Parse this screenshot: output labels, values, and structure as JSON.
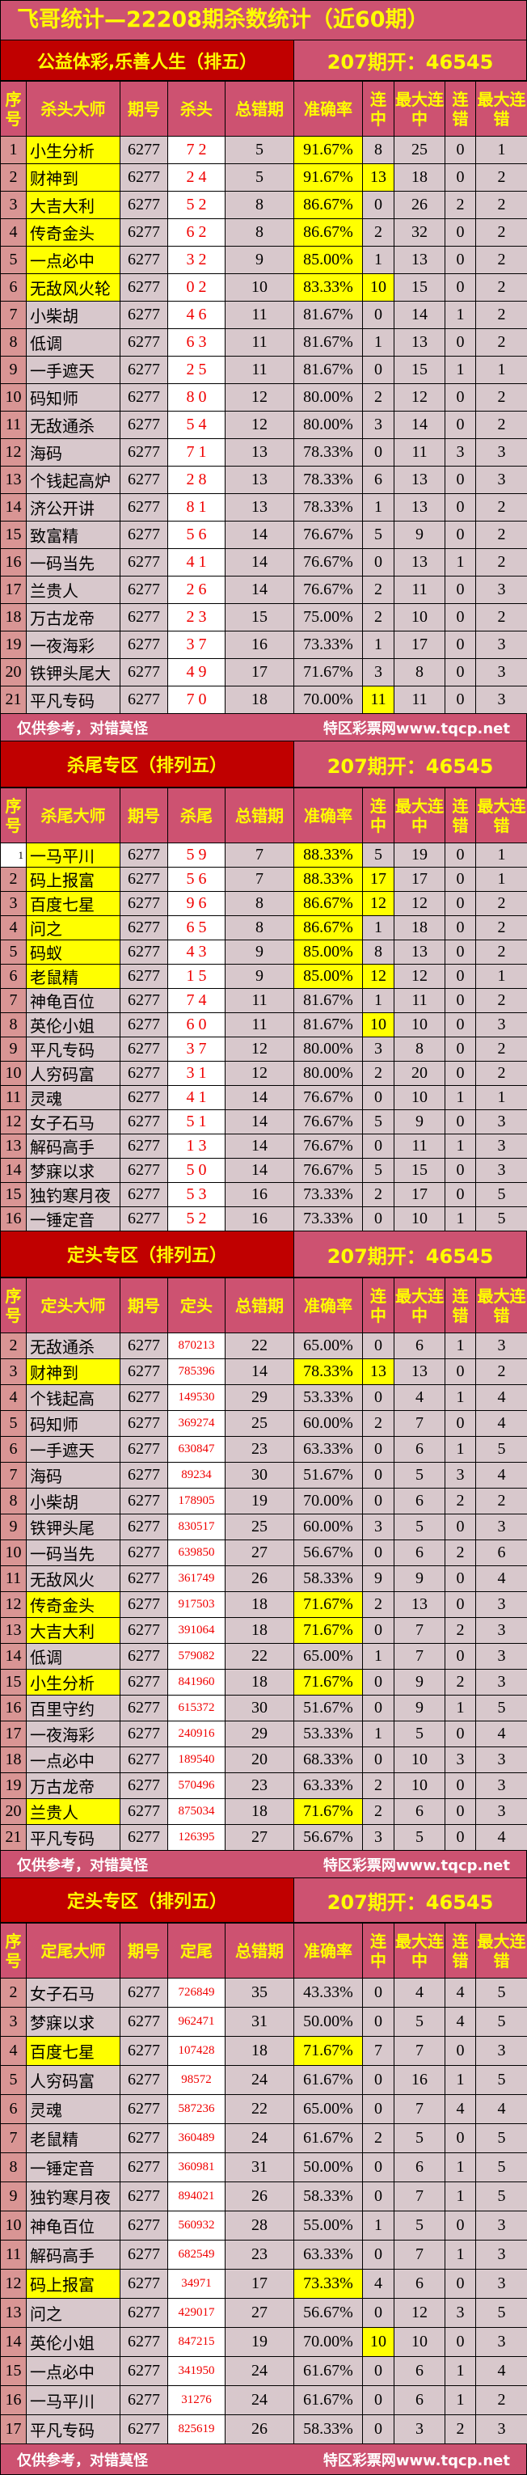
{
  "title": "飞哥统计—22208期杀数统计（近60期）",
  "colors": {
    "header_bg": "#cd5271",
    "section_left_bg": "#c00000",
    "header_text": "#ffff00",
    "highlight": "#ffff00",
    "cell_bg": "#d8c8cc",
    "seq_bg": "#d99594",
    "number_red": "#f00000"
  },
  "sections": [
    {
      "left": "公益体彩,乐善人生（排五）",
      "right": "207期开：46545",
      "headers": [
        "序号",
        "杀头大师",
        "期号",
        "杀头",
        "总错期",
        "准确率",
        "连中",
        "最大连中",
        "连错",
        "最大连错"
      ],
      "footer": {
        "left": "仅供参考，对错莫怪",
        "right": "特区彩票网www.tqcp.net"
      },
      "rows": [
        [
          "1",
          "小生分析",
          "6277",
          "7 2",
          "5",
          "91.67%",
          "8",
          "25",
          "0",
          "1",
          "name,rate"
        ],
        [
          "2",
          "财神到",
          "6277",
          "2 4",
          "5",
          "91.67%",
          "13",
          "18",
          "0",
          "2",
          "name,rate,streak"
        ],
        [
          "3",
          "大吉大利",
          "6277",
          "5 2",
          "8",
          "86.67%",
          "0",
          "26",
          "2",
          "2",
          "name,rate"
        ],
        [
          "4",
          "传奇金头",
          "6277",
          "6 2",
          "8",
          "86.67%",
          "2",
          "32",
          "0",
          "2",
          "name,rate"
        ],
        [
          "5",
          "一点必中",
          "6277",
          "3 2",
          "9",
          "85.00%",
          "1",
          "13",
          "0",
          "2",
          "name,rate"
        ],
        [
          "6",
          "无敌风火轮",
          "6277",
          "0 2",
          "10",
          "83.33%",
          "10",
          "15",
          "0",
          "2",
          "name,rate,streak"
        ],
        [
          "7",
          "小柴胡",
          "6277",
          "4 6",
          "11",
          "81.67%",
          "0",
          "14",
          "1",
          "2",
          ""
        ],
        [
          "8",
          "低调",
          "6277",
          "6 3",
          "11",
          "81.67%",
          "1",
          "13",
          "0",
          "2",
          ""
        ],
        [
          "9",
          "一手遮天",
          "6277",
          "2 5",
          "11",
          "81.67%",
          "0",
          "15",
          "1",
          "1",
          ""
        ],
        [
          "10",
          "码知师",
          "6277",
          "8 0",
          "12",
          "80.00%",
          "2",
          "12",
          "0",
          "2",
          ""
        ],
        [
          "11",
          "无敌通杀",
          "6277",
          "5 4",
          "12",
          "80.00%",
          "3",
          "14",
          "0",
          "2",
          ""
        ],
        [
          "12",
          "海码",
          "6277",
          "7 1",
          "13",
          "78.33%",
          "0",
          "11",
          "3",
          "3",
          ""
        ],
        [
          "13",
          "个钱起高炉",
          "6277",
          "2 8",
          "13",
          "78.33%",
          "6",
          "13",
          "0",
          "3",
          ""
        ],
        [
          "14",
          "济公开讲",
          "6277",
          "8 1",
          "13",
          "78.33%",
          "1",
          "13",
          "0",
          "2",
          ""
        ],
        [
          "15",
          "致富精",
          "6277",
          "5 6",
          "14",
          "76.67%",
          "5",
          "9",
          "0",
          "2",
          ""
        ],
        [
          "16",
          "一码当先",
          "6277",
          "4 1",
          "14",
          "76.67%",
          "0",
          "13",
          "1",
          "2",
          ""
        ],
        [
          "17",
          "兰贵人",
          "6277",
          "2 6",
          "14",
          "76.67%",
          "2",
          "11",
          "0",
          "3",
          ""
        ],
        [
          "18",
          "万古龙帝",
          "6277",
          "2 3",
          "15",
          "75.00%",
          "2",
          "10",
          "0",
          "2",
          ""
        ],
        [
          "19",
          "一夜海彩",
          "6277",
          "3 7",
          "16",
          "73.33%",
          "1",
          "17",
          "0",
          "3",
          ""
        ],
        [
          "20",
          "铁钾头尾大",
          "6277",
          "4 9",
          "17",
          "71.67%",
          "3",
          "8",
          "0",
          "3",
          ""
        ],
        [
          "21",
          "平凡专码",
          "6277",
          "7 0",
          "18",
          "70.00%",
          "11",
          "11",
          "0",
          "3",
          "streak"
        ]
      ]
    },
    {
      "left": "杀尾专区（排列五）",
      "right": "207期开：46545",
      "headers": [
        "序号",
        "杀尾大师",
        "期号",
        "杀尾",
        "总错期",
        "准确率",
        "连中",
        "最大连中",
        "连错",
        "最大连错"
      ],
      "rows": [
        [
          "1",
          "一马平川",
          "6277",
          "5 9",
          "7",
          "88.33%",
          "5",
          "19",
          "0",
          "1",
          "name,rate,seqwhite"
        ],
        [
          "2",
          "码上报富",
          "6277",
          "5 6",
          "7",
          "88.33%",
          "17",
          "17",
          "0",
          "1",
          "name,rate,streak"
        ],
        [
          "3",
          "百度七星",
          "6277",
          "9 6",
          "8",
          "86.67%",
          "12",
          "12",
          "0",
          "2",
          "name,rate,streak"
        ],
        [
          "4",
          "问之",
          "6277",
          "6 5",
          "8",
          "86.67%",
          "1",
          "18",
          "0",
          "2",
          "name,rate"
        ],
        [
          "5",
          "码蚁",
          "6277",
          "4 3",
          "9",
          "85.00%",
          "8",
          "13",
          "0",
          "2",
          "name,rate"
        ],
        [
          "6",
          "老鼠精",
          "6277",
          "1 5",
          "9",
          "85.00%",
          "12",
          "12",
          "0",
          "1",
          "name,rate,streak"
        ],
        [
          "7",
          "神龟百位",
          "6277",
          "7 4",
          "11",
          "81.67%",
          "1",
          "11",
          "0",
          "2",
          ""
        ],
        [
          "8",
          "英伦小姐",
          "6277",
          "6 0",
          "11",
          "81.67%",
          "10",
          "10",
          "0",
          "3",
          "streak"
        ],
        [
          "9",
          "平凡专码",
          "6277",
          "3 7",
          "12",
          "80.00%",
          "3",
          "8",
          "0",
          "2",
          ""
        ],
        [
          "10",
          "人穷码富",
          "6277",
          "3 1",
          "12",
          "80.00%",
          "2",
          "20",
          "0",
          "2",
          ""
        ],
        [
          "11",
          "灵魂",
          "6277",
          "4 1",
          "14",
          "76.67%",
          "0",
          "10",
          "1",
          "1",
          ""
        ],
        [
          "12",
          "女子石马",
          "6277",
          "5 1",
          "14",
          "76.67%",
          "5",
          "9",
          "0",
          "3",
          ""
        ],
        [
          "13",
          "解码高手",
          "6277",
          "1 3",
          "14",
          "76.67%",
          "0",
          "11",
          "1",
          "3",
          ""
        ],
        [
          "14",
          "梦寐以求",
          "6277",
          "5 0",
          "14",
          "76.67%",
          "5",
          "15",
          "0",
          "3",
          ""
        ],
        [
          "15",
          "独钓寒月夜",
          "6277",
          "5 3",
          "16",
          "73.33%",
          "2",
          "17",
          "0",
          "5",
          ""
        ],
        [
          "16",
          "一锤定音",
          "6277",
          "5 2",
          "16",
          "73.33%",
          "0",
          "10",
          "1",
          "5",
          ""
        ]
      ]
    },
    {
      "left": "定头专区（排列五）",
      "right": "207期开：46545",
      "headers": [
        "序号",
        "定头大师",
        "期号",
        "定头",
        "总错期",
        "准确率",
        "连中",
        "最大连中",
        "连错",
        "最大连错"
      ],
      "footer": {
        "left": "仅供参考，对错莫怪",
        "right": "特区彩票网www.tqcp.net"
      },
      "rows": [
        [
          "2",
          "无敌通杀",
          "6277",
          "870213",
          "22",
          "65.00%",
          "0",
          "6",
          "1",
          "3",
          ""
        ],
        [
          "3",
          "财神到",
          "6277",
          "785396",
          "14",
          "78.33%",
          "13",
          "13",
          "0",
          "2",
          "name,rate,streak"
        ],
        [
          "4",
          "个钱起高",
          "6277",
          "149530",
          "29",
          "53.33%",
          "0",
          "4",
          "1",
          "4",
          ""
        ],
        [
          "5",
          "码知师",
          "6277",
          "369274",
          "25",
          "60.00%",
          "2",
          "7",
          "0",
          "4",
          ""
        ],
        [
          "6",
          "一手遮天",
          "6277",
          "630847",
          "23",
          "63.33%",
          "0",
          "6",
          "1",
          "5",
          ""
        ],
        [
          "7",
          "海码",
          "6277",
          "89234",
          "30",
          "51.67%",
          "0",
          "5",
          "3",
          "4",
          ""
        ],
        [
          "8",
          "小柴胡",
          "6277",
          "178905",
          "19",
          "70.00%",
          "0",
          "6",
          "2",
          "2",
          ""
        ],
        [
          "9",
          "铁钾头尾",
          "6277",
          "830517",
          "25",
          "60.00%",
          "3",
          "5",
          "0",
          "3",
          ""
        ],
        [
          "10",
          "一码当先",
          "6277",
          "639850",
          "27",
          "56.67%",
          "0",
          "6",
          "2",
          "6",
          ""
        ],
        [
          "11",
          "无敌风火",
          "6277",
          "361749",
          "26",
          "58.33%",
          "9",
          "9",
          "0",
          "4",
          ""
        ],
        [
          "12",
          "传奇金头",
          "6277",
          "917503",
          "18",
          "71.67%",
          "2",
          "13",
          "0",
          "3",
          "name,rate"
        ],
        [
          "13",
          "大吉大利",
          "6277",
          "391064",
          "18",
          "71.67%",
          "0",
          "7",
          "2",
          "3",
          "name,rate"
        ],
        [
          "14",
          "低调",
          "6277",
          "579082",
          "22",
          "65.00%",
          "1",
          "7",
          "0",
          "3",
          ""
        ],
        [
          "15",
          "小生分析",
          "6277",
          "841960",
          "18",
          "71.67%",
          "0",
          "9",
          "2",
          "3",
          "name,rate"
        ],
        [
          "16",
          "百里守约",
          "6277",
          "615372",
          "30",
          "51.67%",
          "0",
          "9",
          "1",
          "5",
          ""
        ],
        [
          "17",
          "一夜海彩",
          "6277",
          "240916",
          "29",
          "53.33%",
          "1",
          "5",
          "0",
          "4",
          ""
        ],
        [
          "18",
          "一点必中",
          "6277",
          "189540",
          "20",
          "68.33%",
          "0",
          "10",
          "3",
          "3",
          ""
        ],
        [
          "19",
          "万古龙帝",
          "6277",
          "570496",
          "23",
          "63.33%",
          "2",
          "10",
          "0",
          "3",
          ""
        ],
        [
          "20",
          "兰贵人",
          "6277",
          "875034",
          "18",
          "71.67%",
          "2",
          "6",
          "0",
          "3",
          "name,rate"
        ],
        [
          "21",
          "平凡专码",
          "6277",
          "126395",
          "27",
          "56.67%",
          "3",
          "5",
          "0",
          "4",
          ""
        ]
      ]
    },
    {
      "left": "定头专区（排列五）",
      "right": "207期开：46545",
      "headers": [
        "序号",
        "定尾大师",
        "期号",
        "定尾",
        "总错期",
        "准确率",
        "连中",
        "最大连中",
        "连错",
        "最大连错"
      ],
      "footer": {
        "left": "仅供参考，对错莫怪",
        "right": "特区彩票网www.tqcp.net"
      },
      "rows": [
        [
          "2",
          "女子石马",
          "6277",
          "726849",
          "35",
          "43.33%",
          "0",
          "4",
          "4",
          "5",
          ""
        ],
        [
          "3",
          "梦寐以求",
          "6277",
          "962471",
          "31",
          "50.00%",
          "0",
          "5",
          "4",
          "5",
          ""
        ],
        [
          "4",
          "百度七星",
          "6277",
          "107428",
          "18",
          "71.67%",
          "7",
          "7",
          "0",
          "3",
          "name,rate"
        ],
        [
          "5",
          "人穷码富",
          "6277",
          "98572",
          "24",
          "61.67%",
          "0",
          "16",
          "1",
          "5",
          ""
        ],
        [
          "6",
          "灵魂",
          "6277",
          "587236",
          "22",
          "65.00%",
          "0",
          "7",
          "4",
          "4",
          ""
        ],
        [
          "7",
          "老鼠精",
          "6277",
          "360489",
          "24",
          "61.67%",
          "2",
          "5",
          "0",
          "5",
          ""
        ],
        [
          "8",
          "一锤定音",
          "6277",
          "360981",
          "31",
          "50.00%",
          "0",
          "6",
          "1",
          "5",
          ""
        ],
        [
          "9",
          "独钓寒月夜",
          "6277",
          "894021",
          "26",
          "58.33%",
          "0",
          "7",
          "1",
          "5",
          ""
        ],
        [
          "10",
          "神龟百位",
          "6277",
          "560932",
          "28",
          "55.00%",
          "1",
          "5",
          "0",
          "3",
          ""
        ],
        [
          "11",
          "解码高手",
          "6277",
          "682549",
          "23",
          "63.33%",
          "0",
          "7",
          "1",
          "3",
          ""
        ],
        [
          "12",
          "码上报富",
          "6277",
          "34971",
          "17",
          "73.33%",
          "4",
          "6",
          "0",
          "3",
          "name,rate"
        ],
        [
          "13",
          "问之",
          "6277",
          "429017",
          "27",
          "56.67%",
          "0",
          "12",
          "3",
          "5",
          ""
        ],
        [
          "14",
          "英伦小姐",
          "6277",
          "847215",
          "19",
          "70.00%",
          "10",
          "10",
          "0",
          "3",
          "streak"
        ],
        [
          "15",
          "一点必中",
          "6277",
          "341950",
          "24",
          "61.67%",
          "0",
          "6",
          "1",
          "4",
          ""
        ],
        [
          "16",
          "一马平川",
          "6277",
          "31276",
          "24",
          "61.67%",
          "0",
          "6",
          "1",
          "2",
          ""
        ],
        [
          "17",
          "平凡专码",
          "6277",
          "825619",
          "26",
          "58.33%",
          "0",
          "3",
          "2",
          "3",
          ""
        ]
      ]
    }
  ]
}
